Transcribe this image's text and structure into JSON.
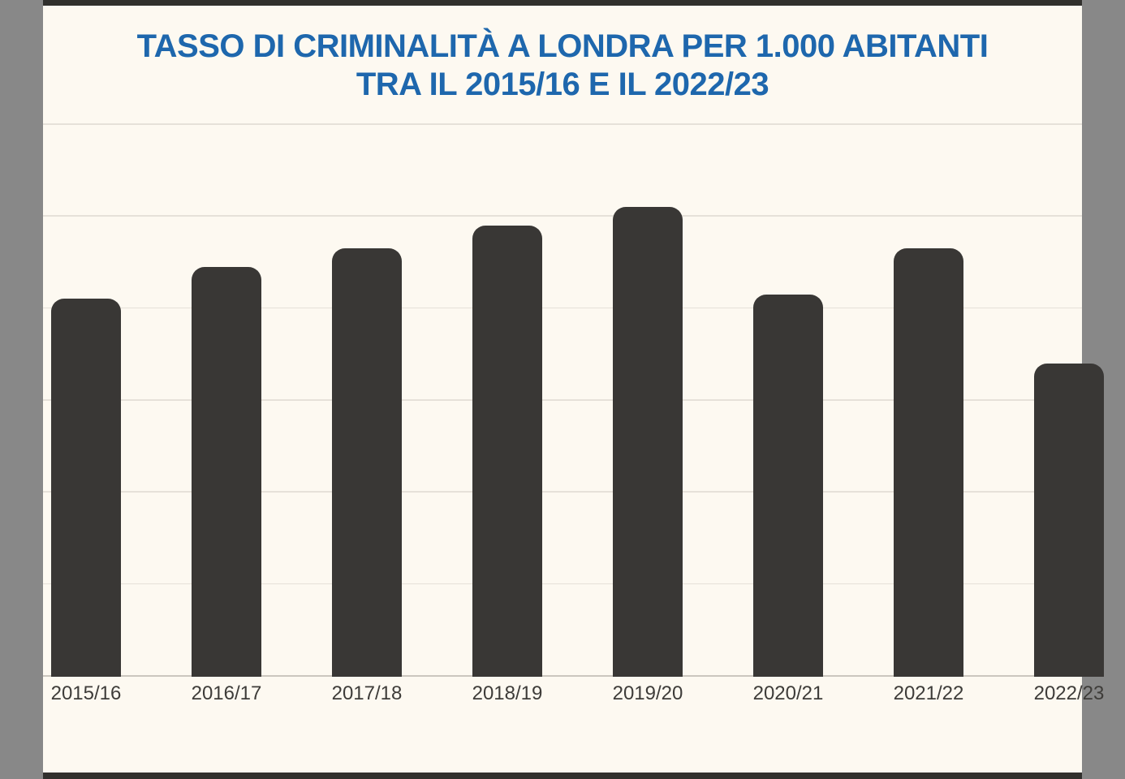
{
  "page": {
    "background_color": "#fdf9f1",
    "decor_band_color": "#31302d"
  },
  "title": {
    "line1": "TASSO DI CRIMINALITÀ A LONDRA PER 1.000 ABITANTI",
    "line2": "TRA IL 2015/16 E IL 2022/23",
    "color": "#1e67ad"
  },
  "chart_data": {
    "type": "bar",
    "title": "TASSO DI CRIMINALITÀ A LONDRA PER 1.000 ABITANTI TRA IL 2015/16 E IL 2022/23",
    "categories": [
      "2015/16",
      "2016/17",
      "2017/18",
      "2018/19",
      "2019/20",
      "2020/21",
      "2021/22",
      "2022/23"
    ],
    "values": [
      82,
      89,
      93,
      98,
      102,
      83,
      93,
      68
    ],
    "xlabel": "",
    "ylabel": "",
    "ylim": [
      0,
      120
    ],
    "gridline_step": 20,
    "grid": "horizontal",
    "y_tick_labels_visible": false,
    "value_labels_visible": false,
    "legend": "none",
    "bar_color": "#393735",
    "gridline_color": "#e6e1d9",
    "baseline_color": "#cbc6be",
    "x_label_color": "#3e3c39"
  }
}
